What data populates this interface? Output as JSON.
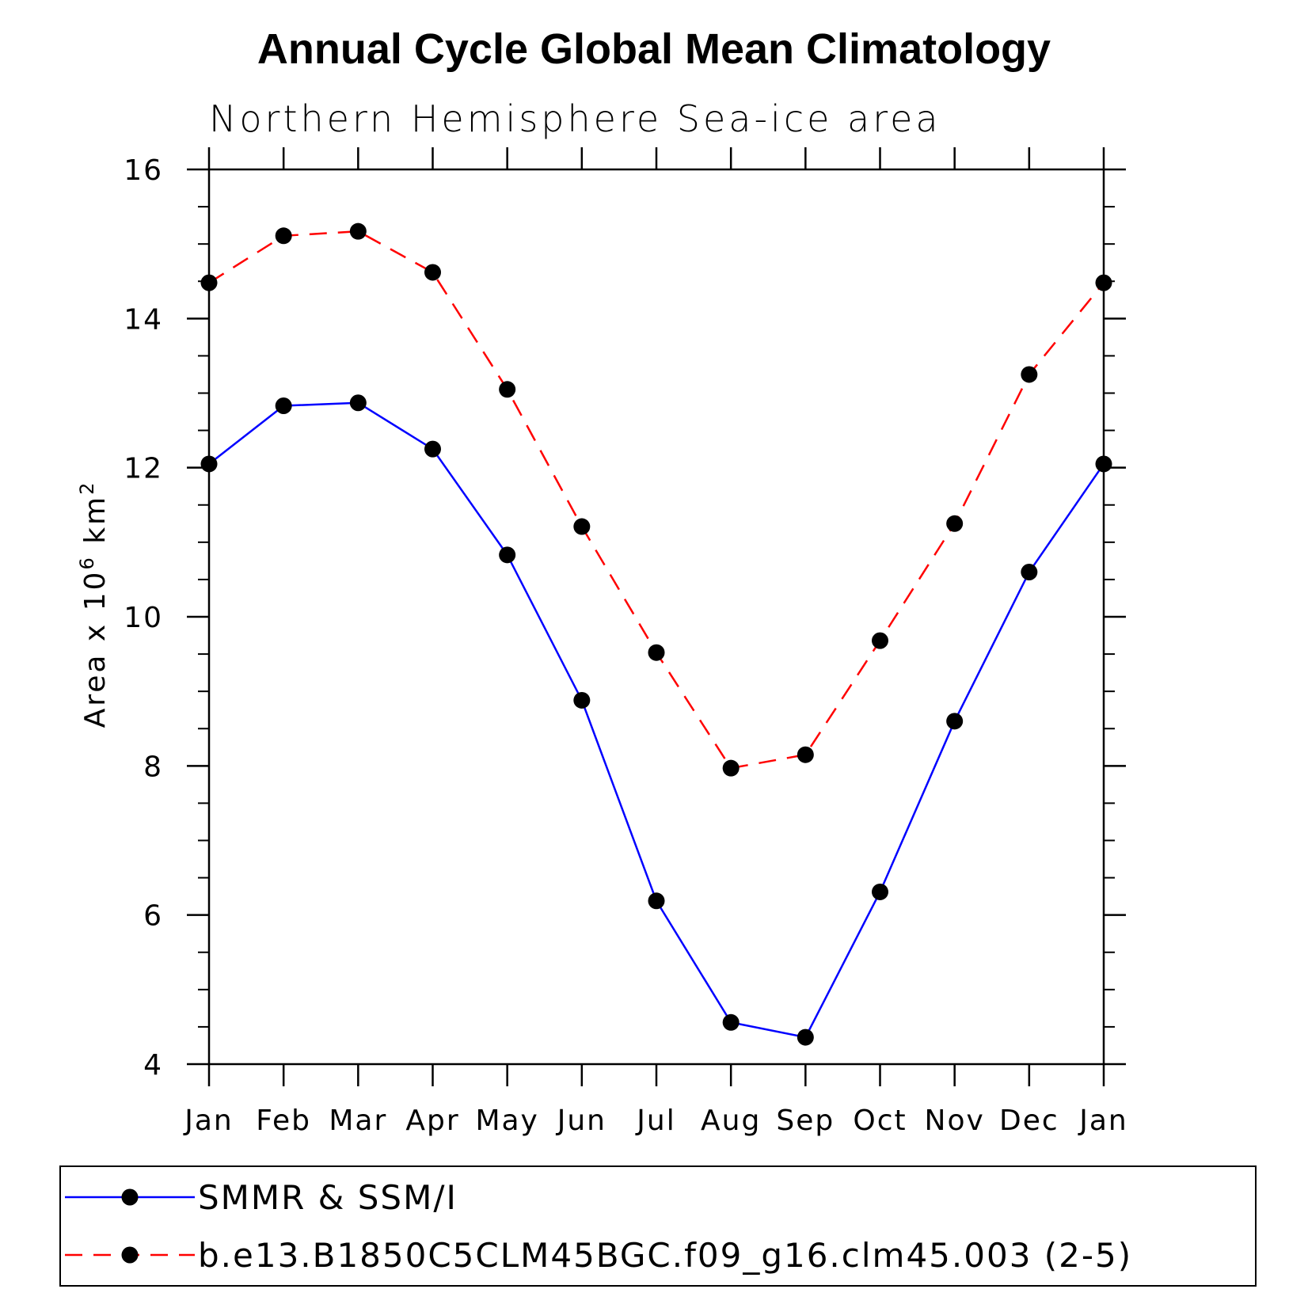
{
  "chart_data": {
    "type": "line",
    "title": "Annual Cycle Global Mean Climatology",
    "subtitle": "Northern Hemisphere Sea-ice area",
    "ylabel": {
      "base": "Area x 10",
      "exp1": "6",
      "mid": " km",
      "exp2": "2"
    },
    "categories": [
      "Jan",
      "Feb",
      "Mar",
      "Apr",
      "May",
      "Jun",
      "Jul",
      "Aug",
      "Sep",
      "Oct",
      "Nov",
      "Dec",
      "Jan"
    ],
    "ylim": [
      4,
      16
    ],
    "yticks": [
      4,
      6,
      8,
      10,
      12,
      14,
      16
    ],
    "series": [
      {
        "name": "SMMR & SSM/I",
        "color": "#0000ff",
        "dash": "solid",
        "values": [
          12.05,
          12.83,
          12.87,
          12.25,
          10.83,
          8.88,
          6.19,
          4.56,
          4.36,
          6.31,
          8.6,
          10.6,
          12.05
        ]
      },
      {
        "name": "b.e13.B1850C5CLM45BGC.f09_g16.clm45.003 (2-5)",
        "color": "#ff0000",
        "dash": "dashed",
        "values": [
          14.48,
          15.11,
          15.17,
          14.62,
          13.05,
          11.21,
          9.52,
          7.97,
          8.15,
          9.68,
          11.25,
          13.25,
          14.48
        ]
      }
    ],
    "legend_position": "bottom"
  }
}
